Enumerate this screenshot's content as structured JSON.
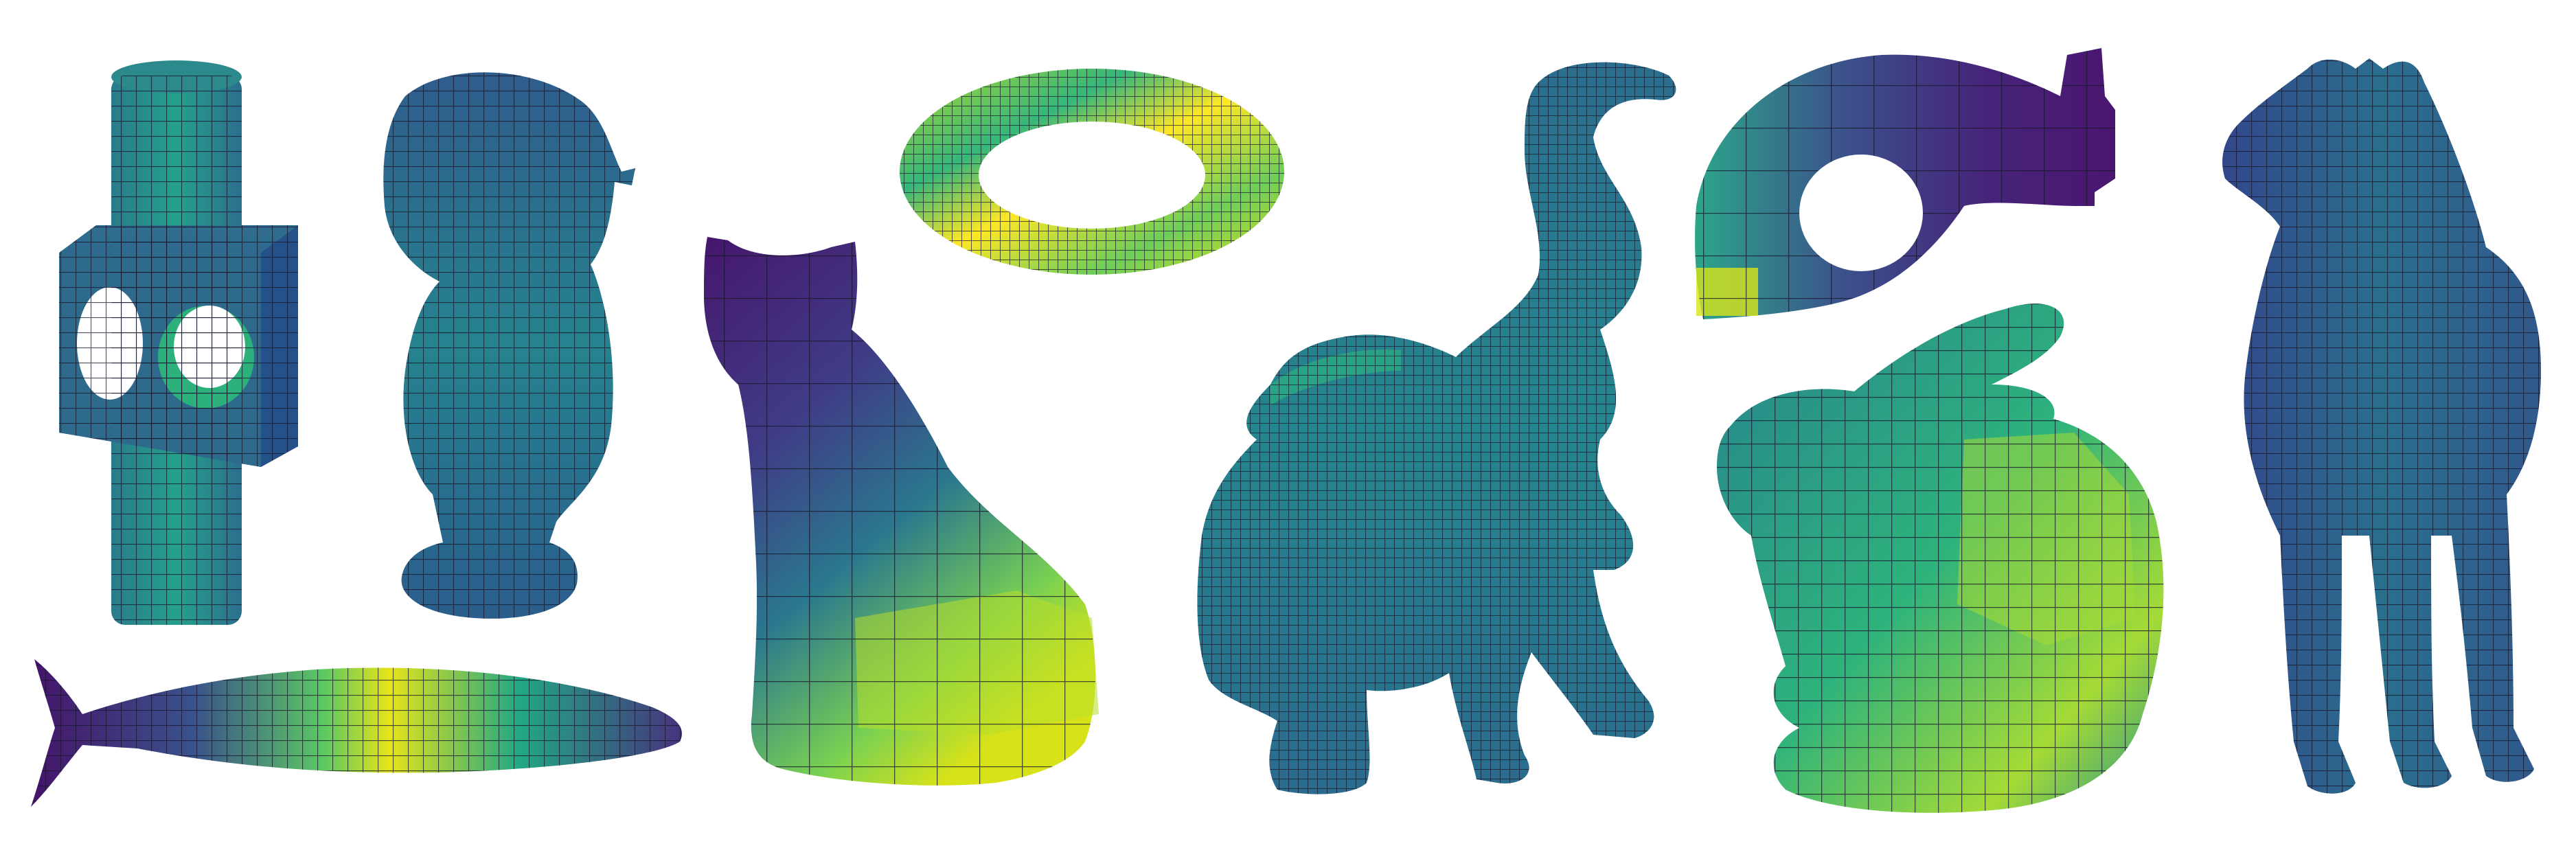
{
  "figure": {
    "background": "#ffffff",
    "colormap": [
      "#440154",
      "#3b528b",
      "#21918c",
      "#5ec962",
      "#fde725"
    ],
    "edge_color": "#1a1a2e",
    "meshes": [
      {
        "name": "cylinder-cube"
      },
      {
        "name": "bust"
      },
      {
        "name": "fish"
      },
      {
        "name": "cat"
      },
      {
        "name": "torus"
      },
      {
        "name": "elephant"
      },
      {
        "name": "rocker-arm"
      },
      {
        "name": "bunny"
      },
      {
        "name": "horse"
      }
    ]
  }
}
